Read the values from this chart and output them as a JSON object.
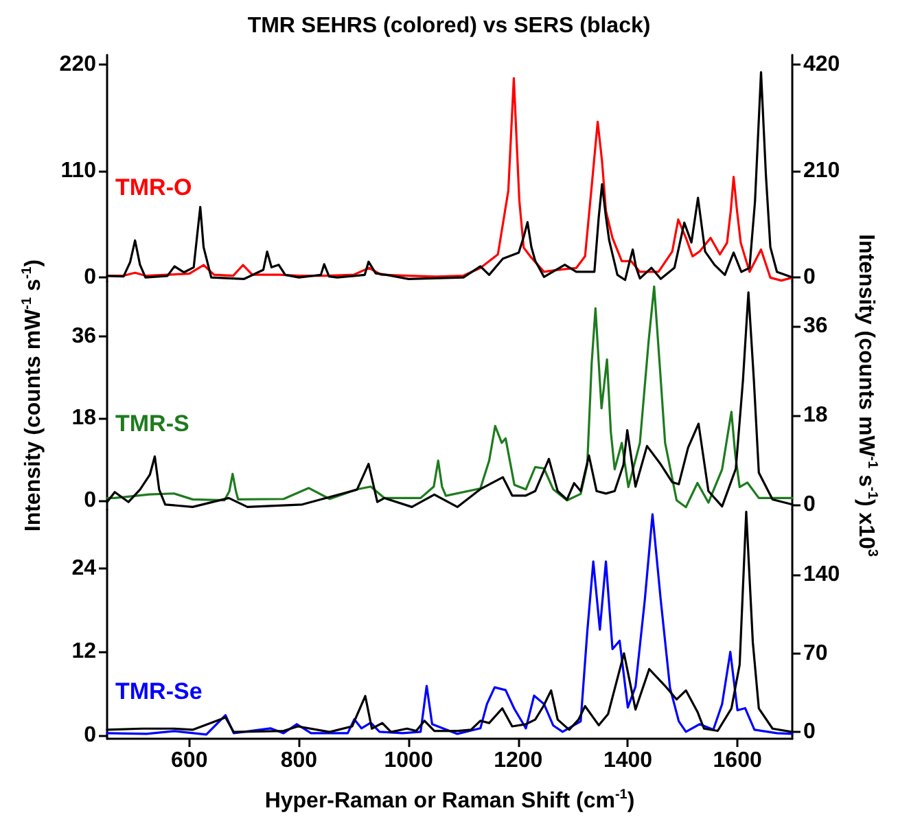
{
  "chart_data": [
    {
      "type": "line",
      "title": "TMR SEHRS (colored) vs SERS (black)",
      "xlim": [
        450,
        1700
      ],
      "xticks": [
        600,
        800,
        1000,
        1200,
        1400,
        1600
      ],
      "ylim": [
        -4,
        230
      ],
      "yticks": [
        0,
        110,
        220
      ],
      "y2lim": [
        -8,
        439
      ],
      "y2ticks": [
        0,
        210,
        420
      ],
      "tick_labels": "y",
      "series": [
        {
          "name": "TMR-O",
          "color": "#ff0000",
          "x": [
            450,
            480,
            501,
            520,
            560,
            600,
            626,
            645,
            680,
            698,
            715,
            764,
            800,
            850,
            900,
            928,
            950,
            1000,
            1050,
            1100,
            1131,
            1163,
            1182,
            1192,
            1202,
            1210,
            1222,
            1247,
            1272,
            1306,
            1322,
            1335,
            1345,
            1353,
            1360,
            1372,
            1389,
            1406,
            1422,
            1456,
            1481,
            1492,
            1506,
            1518,
            1531,
            1551,
            1568,
            1581,
            1588,
            1593,
            1599,
            1606,
            1622,
            1643,
            1660,
            1680,
            1700
          ],
          "values": [
            2,
            2,
            5,
            2,
            3,
            4,
            13,
            3,
            2,
            13,
            3,
            3,
            2,
            2,
            3,
            10,
            3,
            2,
            1,
            2,
            10,
            24,
            90,
            206,
            80,
            31,
            22,
            6,
            8,
            10,
            22,
            100,
            161,
            120,
            69,
            41,
            17,
            17,
            6,
            6,
            27,
            60,
            41,
            22,
            27,
            41,
            24,
            36,
            70,
            104,
            70,
            36,
            6,
            29,
            0,
            -3,
            0
          ]
        },
        {
          "color": "#000000",
          "axis": "y2",
          "x": [
            450,
            480,
            492,
            501,
            510,
            520,
            560,
            573,
            590,
            608,
            615,
            620,
            626,
            640,
            700,
            735,
            742,
            750,
            763,
            775,
            800,
            840,
            846,
            855,
            870,
            920,
            927,
            940,
            960,
            1000,
            1100,
            1131,
            1147,
            1172,
            1201,
            1210,
            1217,
            1224,
            1231,
            1247,
            1285,
            1306,
            1339,
            1347,
            1353,
            1360,
            1366,
            1381,
            1395,
            1403,
            1409,
            1415,
            1422,
            1443,
            1460,
            1485,
            1503,
            1516,
            1528,
            1541,
            1558,
            1577,
            1593,
            1607,
            1622,
            1632,
            1643,
            1652,
            1660,
            1672,
            1700
          ],
          "values": [
            3,
            2,
            30,
            73,
            25,
            0,
            3,
            22,
            10,
            20,
            90,
            139,
            60,
            0,
            -3,
            15,
            51,
            20,
            25,
            5,
            0,
            5,
            26,
            2,
            0,
            5,
            31,
            8,
            5,
            -3,
            0,
            22,
            5,
            37,
            49,
            80,
            109,
            60,
            33,
            1,
            25,
            11,
            11,
            120,
            184,
            120,
            73,
            5,
            -5,
            30,
            55,
            20,
            -2,
            19,
            -3,
            19,
            108,
            69,
            157,
            51,
            25,
            5,
            49,
            11,
            19,
            150,
            405,
            200,
            60,
            11,
            0
          ]
        }
      ]
    },
    {
      "type": "line",
      "ylabel": "Intensity (counts mW$^{-1}$ s$^{-1}$)",
      "y2label": "Intensity (counts mW$^{-1}$ s$^{-1}$) x10$^{3}$",
      "xlim": [
        450,
        1700
      ],
      "xticks": [
        600,
        800,
        1000,
        1200,
        1400,
        1600
      ],
      "ylim": [
        -2,
        48
      ],
      "yticks": [
        0,
        18,
        36
      ],
      "y2lim": [
        -1,
        45
      ],
      "y2ticks": [
        0,
        18,
        36
      ],
      "tick_labels": "y",
      "series": [
        {
          "name": "TMR-S",
          "color": "#1e7b1e",
          "x": [
            450,
            464,
            527,
            572,
            606,
            664,
            673,
            679,
            685,
            689,
            772,
            818,
            856,
            906,
            931,
            956,
            1022,
            1046,
            1054,
            1061,
            1068,
            1131,
            1147,
            1158,
            1170,
            1177,
            1193,
            1214,
            1231,
            1247,
            1264,
            1289,
            1314,
            1326,
            1334,
            1341,
            1347,
            1352,
            1362,
            1369,
            1376,
            1389,
            1401,
            1422,
            1438,
            1448,
            1458,
            1468,
            1489,
            1506,
            1527,
            1547,
            1572,
            1583,
            1589,
            1596,
            1604,
            1618,
            1639,
            1700
          ],
          "values": [
            0.5,
            0.5,
            1.3,
            1.5,
            0.2,
            0,
            2,
            5.8,
            2,
            0.2,
            0.3,
            2.7,
            0.3,
            2.4,
            3,
            0.5,
            0.5,
            3,
            8.7,
            3,
            1,
            2.6,
            8.7,
            16.3,
            12.6,
            13.6,
            3.4,
            2.4,
            7.3,
            7,
            2.4,
            0,
            1.4,
            7.8,
            30,
            42.1,
            30,
            20.2,
            30.9,
            15,
            6.8,
            12.6,
            2.9,
            12.6,
            35,
            46.9,
            30,
            12.6,
            0,
            -1.5,
            3.8,
            -0.5,
            6.8,
            15,
            19.4,
            10,
            2.9,
            3.9,
            0.5,
            0.5
          ]
        },
        {
          "color": "#000000",
          "axis": "y2",
          "x": [
            450,
            464,
            489,
            510,
            528,
            537,
            545,
            556,
            606,
            672,
            706,
            806,
            906,
            927,
            943,
            956,
            1006,
            1047,
            1089,
            1131,
            1172,
            1189,
            1214,
            1231,
            1256,
            1272,
            1289,
            1302,
            1314,
            1329,
            1343,
            1360,
            1376,
            1392,
            1399,
            1414,
            1435,
            1460,
            1481,
            1493,
            1510,
            1529,
            1547,
            1572,
            1597,
            1610,
            1620,
            1630,
            1639,
            1664,
            1700
          ],
          "values": [
            0.5,
            2.5,
            0.5,
            3,
            6,
            9.7,
            3,
            0,
            -0.5,
            1.3,
            -0.5,
            0,
            3,
            8.2,
            0.5,
            1.3,
            -0.5,
            2,
            -0.5,
            3.1,
            5.5,
            1.8,
            1.8,
            2.7,
            9.2,
            2.7,
            1,
            4.3,
            2.7,
            9.9,
            2.7,
            2.2,
            2.7,
            8,
            15,
            3.6,
            11.8,
            8.1,
            4.5,
            4.1,
            11.5,
            16.3,
            2.7,
            -0.4,
            7.2,
            25,
            42.8,
            25,
            6.4,
            1,
            0
          ]
        }
      ]
    },
    {
      "type": "line",
      "xlabel": "Hyper-Raman or Raman Shift (cm$^{-1}$)",
      "xlim": [
        450,
        1700
      ],
      "xticks": [
        600,
        800,
        1000,
        1200,
        1400,
        1600
      ],
      "ylim": [
        -0.5,
        32.5
      ],
      "yticks": [
        0,
        12,
        24
      ],
      "y2lim": [
        -6,
        198
      ],
      "y2ticks": [
        0,
        70,
        140
      ],
      "series": [
        {
          "name": "TMR-Se",
          "color": "#0000ff",
          "x": [
            450,
            522,
            572,
            631,
            666,
            681,
            748,
            772,
            796,
            822,
            889,
            901,
            914,
            931,
            947,
            989,
            1022,
            1033,
            1043,
            1089,
            1131,
            1143,
            1157,
            1177,
            1193,
            1214,
            1229,
            1247,
            1264,
            1281,
            1314,
            1326,
            1337,
            1349,
            1360,
            1372,
            1385,
            1400,
            1414,
            1431,
            1445,
            1460,
            1477,
            1493,
            1506,
            1531,
            1556,
            1572,
            1587,
            1600,
            1614,
            1631,
            1672,
            1700
          ],
          "values": [
            0.3,
            0.2,
            0.6,
            0.1,
            2.9,
            0.3,
            1,
            0.3,
            1.6,
            0.3,
            0.3,
            2.3,
            1,
            1.8,
            0.5,
            0.3,
            0.5,
            7.1,
            1.6,
            0.2,
            1,
            4.5,
            6.9,
            6.5,
            3.8,
            1,
            5.7,
            4.5,
            1.4,
            0.5,
            2,
            14.9,
            25,
            15.2,
            25,
            12.4,
            13.6,
            4,
            7,
            19.5,
            31.8,
            19.5,
            6.8,
            2,
            0.5,
            1.6,
            0.8,
            4.5,
            12,
            3.6,
            3.9,
            0.8,
            0.3,
            0.2
          ]
        },
        {
          "color": "#000000",
          "axis": "y2",
          "x": [
            450,
            514,
            572,
            606,
            666,
            681,
            772,
            798,
            856,
            897,
            921,
            933,
            952,
            968,
            997,
            1014,
            1029,
            1047,
            1089,
            1114,
            1131,
            1147,
            1171,
            1189,
            1214,
            1231,
            1246,
            1260,
            1272,
            1293,
            1310,
            1322,
            1347,
            1364,
            1393,
            1414,
            1439,
            1468,
            1489,
            1506,
            1527,
            1539,
            1564,
            1589,
            1604,
            1616,
            1628,
            1639,
            1664,
            1700
          ],
          "values": [
            2,
            3,
            3,
            2,
            13,
            0,
            1,
            5,
            0,
            5,
            32,
            3,
            8,
            0,
            3,
            1,
            10,
            1,
            1,
            2,
            10,
            8,
            21,
            5,
            7,
            11,
            23,
            37,
            11,
            2,
            11,
            23,
            6,
            16,
            70,
            20,
            56,
            41,
            29,
            37,
            18,
            3,
            1,
            21,
            60,
            196,
            80,
            21,
            3,
            0
          ]
        }
      ]
    }
  ]
}
